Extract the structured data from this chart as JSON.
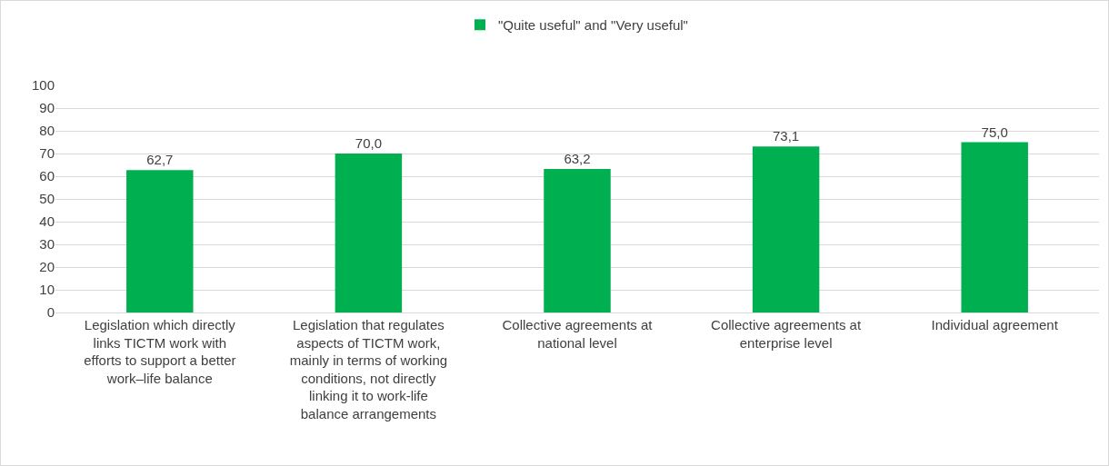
{
  "chart_data": {
    "type": "bar",
    "categories": [
      "Legislation which directly links TICTM work with efforts to support a better work–life balance",
      "Legislation that regulates aspects of TICTM work, mainly in terms of working conditions, not directly linking it to work-life balance arrangements",
      "Collective agreements at national level",
      "Collective agreements at enterprise level",
      "Individual agreement"
    ],
    "series": [
      {
        "name": "\"Quite useful\" and \"Very useful\"",
        "color": "#00b050",
        "values": [
          62.7,
          70.0,
          63.2,
          73.1,
          75.0
        ],
        "value_labels": [
          "62,7",
          "70,0",
          "63,2",
          "73,1",
          "75,0"
        ]
      }
    ],
    "ylim": [
      0,
      100
    ],
    "yticks": [
      0,
      10,
      20,
      30,
      40,
      50,
      60,
      70,
      80,
      90,
      100
    ],
    "grid": "y",
    "legend": "top"
  }
}
